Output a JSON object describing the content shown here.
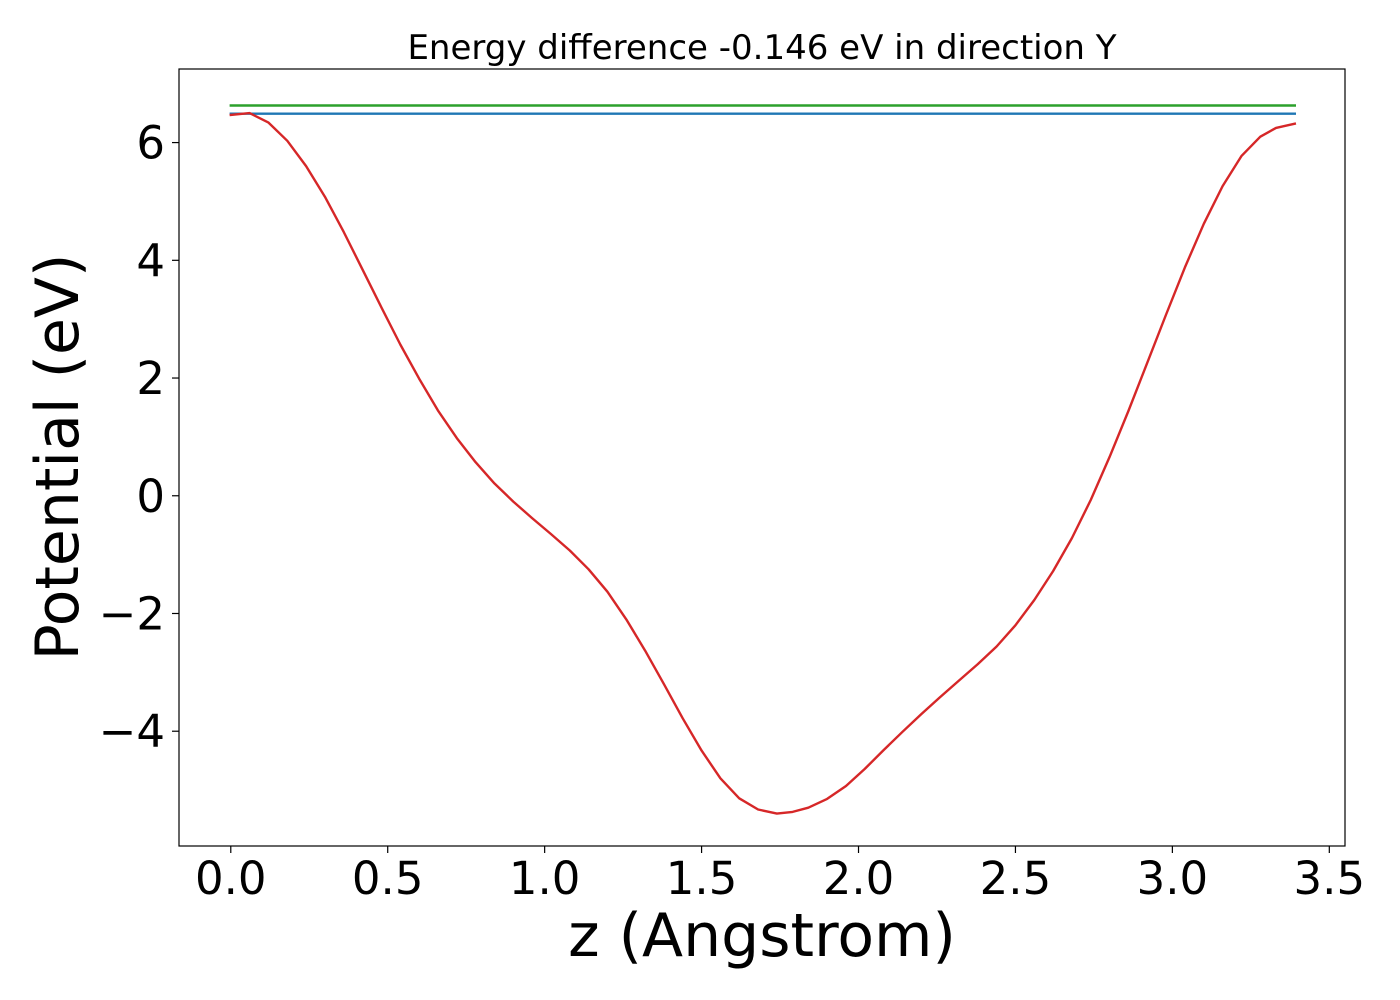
{
  "chart_data": {
    "type": "line",
    "title": "Energy difference -0.146 eV in direction Y",
    "xlabel": "z (Angstrom)",
    "ylabel": "Potential (eV)",
    "xlim": [
      -0.165,
      3.55
    ],
    "ylim": [
      -5.95,
      7.25
    ],
    "xticks": [
      0.0,
      0.5,
      1.0,
      1.5,
      2.0,
      2.5,
      3.0,
      3.5
    ],
    "xtick_labels": [
      "0.0",
      "0.5",
      "1.0",
      "1.5",
      "2.0",
      "2.5",
      "3.0",
      "3.5"
    ],
    "yticks": [
      6,
      4,
      2,
      0,
      -2,
      -4
    ],
    "ytick_labels": [
      "6",
      "4",
      "2",
      "0",
      "−2",
      "−4"
    ],
    "grid": false,
    "legend": "none",
    "series": [
      {
        "color": "#2ca02c",
        "x": [
          0.0,
          3.39
        ],
        "y": [
          6.63,
          6.63
        ]
      },
      {
        "color": "#1f77b4",
        "x": [
          0.0,
          3.39
        ],
        "y": [
          6.49,
          6.49
        ]
      },
      {
        "color": "#d62728",
        "x": [
          0.0,
          0.06,
          0.12,
          0.18,
          0.24,
          0.3,
          0.36,
          0.42,
          0.48,
          0.54,
          0.6,
          0.66,
          0.72,
          0.78,
          0.84,
          0.9,
          0.96,
          1.02,
          1.08,
          1.14,
          1.2,
          1.26,
          1.32,
          1.38,
          1.44,
          1.5,
          1.56,
          1.62,
          1.68,
          1.74,
          1.79,
          1.84,
          1.9,
          1.96,
          2.02,
          2.08,
          2.14,
          2.2,
          2.26,
          2.32,
          2.38,
          2.44,
          2.5,
          2.56,
          2.62,
          2.68,
          2.74,
          2.8,
          2.86,
          2.92,
          2.98,
          3.04,
          3.1,
          3.16,
          3.22,
          3.28,
          3.33,
          3.39
        ],
        "y": [
          6.47,
          6.5,
          6.34,
          6.03,
          5.6,
          5.08,
          4.48,
          3.84,
          3.2,
          2.57,
          1.99,
          1.45,
          0.98,
          0.57,
          0.21,
          -0.1,
          -0.38,
          -0.65,
          -0.93,
          -1.25,
          -1.63,
          -2.1,
          -2.63,
          -3.2,
          -3.78,
          -4.33,
          -4.8,
          -5.14,
          -5.33,
          -5.4,
          -5.37,
          -5.3,
          -5.15,
          -4.93,
          -4.64,
          -4.32,
          -4.01,
          -3.71,
          -3.42,
          -3.14,
          -2.86,
          -2.56,
          -2.2,
          -1.77,
          -1.28,
          -0.72,
          -0.07,
          0.66,
          1.44,
          2.26,
          3.08,
          3.88,
          4.62,
          5.26,
          5.77,
          6.1,
          6.25,
          6.32
        ]
      }
    ]
  }
}
